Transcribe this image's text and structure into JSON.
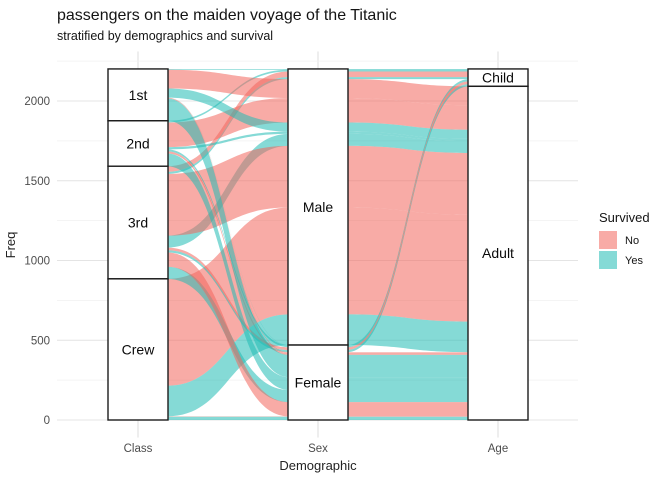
{
  "title": "passengers on the maiden voyage of the Titanic",
  "subtitle": "stratified by demographics and survival",
  "chart_data": {
    "type": "alluvial",
    "title": "passengers on the maiden voyage of the Titanic",
    "subtitle": "stratified by demographics and survival",
    "xlabel": "Demographic",
    "ylabel": "Freq",
    "ylim": [
      0,
      2201
    ],
    "y_ticks": [
      0,
      500,
      1000,
      1500,
      2000
    ],
    "y_minor_ticks": [
      250,
      750,
      1250,
      1750,
      2250
    ],
    "axes": [
      "Class",
      "Sex",
      "Age"
    ],
    "strata": {
      "Class": [
        "1st",
        "2nd",
        "3rd",
        "Crew"
      ],
      "Sex": [
        "Male",
        "Female"
      ],
      "Age": [
        "Child",
        "Adult"
      ]
    },
    "stratum_totals": {
      "1st": 325,
      "2nd": 285,
      "3rd": 706,
      "Crew": 885,
      "Male": 1731,
      "Female": 470,
      "Child": 109,
      "Adult": 2092
    },
    "legend": {
      "title": "Survived",
      "entries": [
        {
          "label": "No",
          "color": "#F8ABA6"
        },
        {
          "label": "Yes",
          "color": "#85DAD6"
        }
      ]
    },
    "colors": {
      "No": "rgba(242,102,93,0.55)",
      "Yes": "rgba(33,188,180,0.55)"
    },
    "grid": true,
    "legend_position": "right",
    "alluvia": [
      {
        "class": "1st",
        "sex": "Male",
        "age": "Child",
        "survived": "Yes",
        "freq": 5
      },
      {
        "class": "2nd",
        "sex": "Male",
        "age": "Child",
        "survived": "Yes",
        "freq": 11
      },
      {
        "class": "3rd",
        "sex": "Male",
        "age": "Child",
        "survived": "No",
        "freq": 35
      },
      {
        "class": "3rd",
        "sex": "Male",
        "age": "Child",
        "survived": "Yes",
        "freq": 13
      },
      {
        "class": "1st",
        "sex": "Male",
        "age": "Adult",
        "survived": "No",
        "freq": 118
      },
      {
        "class": "2nd",
        "sex": "Male",
        "age": "Adult",
        "survived": "No",
        "freq": 154
      },
      {
        "class": "1st",
        "sex": "Male",
        "age": "Adult",
        "survived": "Yes",
        "freq": 57
      },
      {
        "class": "2nd",
        "sex": "Male",
        "age": "Adult",
        "survived": "Yes",
        "freq": 14
      },
      {
        "class": "3rd",
        "sex": "Male",
        "age": "Adult",
        "survived": "Yes",
        "freq": 75
      },
      {
        "class": "3rd",
        "sex": "Male",
        "age": "Adult",
        "survived": "No",
        "freq": 387
      },
      {
        "class": "Crew",
        "sex": "Male",
        "age": "Adult",
        "survived": "No",
        "freq": 670
      },
      {
        "class": "Crew",
        "sex": "Male",
        "age": "Adult",
        "survived": "Yes",
        "freq": 192
      },
      {
        "class": "1st",
        "sex": "Female",
        "age": "Child",
        "survived": "Yes",
        "freq": 1
      },
      {
        "class": "2nd",
        "sex": "Female",
        "age": "Child",
        "survived": "Yes",
        "freq": 13
      },
      {
        "class": "3rd",
        "sex": "Female",
        "age": "Child",
        "survived": "No",
        "freq": 17
      },
      {
        "class": "3rd",
        "sex": "Female",
        "age": "Child",
        "survived": "Yes",
        "freq": 14
      },
      {
        "class": "1st",
        "sex": "Female",
        "age": "Adult",
        "survived": "No",
        "freq": 4
      },
      {
        "class": "2nd",
        "sex": "Female",
        "age": "Adult",
        "survived": "No",
        "freq": 13
      },
      {
        "class": "1st",
        "sex": "Female",
        "age": "Adult",
        "survived": "Yes",
        "freq": 140
      },
      {
        "class": "2nd",
        "sex": "Female",
        "age": "Adult",
        "survived": "Yes",
        "freq": 80
      },
      {
        "class": "3rd",
        "sex": "Female",
        "age": "Adult",
        "survived": "Yes",
        "freq": 76
      },
      {
        "class": "3rd",
        "sex": "Female",
        "age": "Adult",
        "survived": "No",
        "freq": 89
      },
      {
        "class": "Crew",
        "sex": "Female",
        "age": "Adult",
        "survived": "No",
        "freq": 3
      },
      {
        "class": "Crew",
        "sex": "Female",
        "age": "Adult",
        "survived": "Yes",
        "freq": 20
      }
    ],
    "lode_order": {
      "Class": {
        "1st": [
          0,
          4,
          6,
          12,
          16,
          18
        ],
        "2nd": [
          1,
          5,
          7,
          13,
          17,
          19
        ],
        "3rd": [
          2,
          3,
          9,
          8,
          14,
          15,
          21,
          20
        ],
        "Crew": [
          10,
          11,
          22,
          23
        ]
      },
      "Sex": {
        "Male": [
          0,
          1,
          2,
          3,
          4,
          5,
          6,
          7,
          8,
          9,
          10,
          11
        ],
        "Female": [
          12,
          13,
          14,
          15,
          16,
          17,
          18,
          19,
          20,
          21,
          22,
          23
        ]
      },
      "Age": {
        "Child": [
          0,
          1,
          2,
          3,
          12,
          13,
          14,
          15
        ],
        "Adult": [
          4,
          5,
          6,
          7,
          8,
          9,
          10,
          11,
          16,
          17,
          18,
          19,
          20,
          21,
          22,
          23
        ]
      }
    }
  }
}
